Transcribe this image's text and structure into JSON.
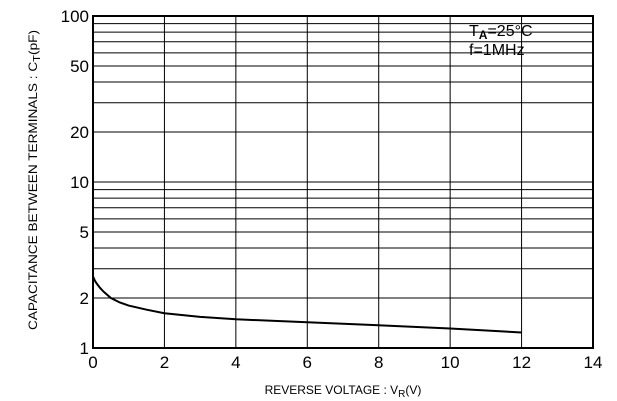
{
  "chart_data": {
    "type": "line",
    "xlabel": {
      "main": "REVERSE VOLTAGE : V",
      "sub": "R",
      "unit": "(V)"
    },
    "ylabel": {
      "main": "CAPACITANCE BETWEEN TERMINALS : C",
      "sub": "T",
      "unit": "(pF)"
    },
    "annotation": {
      "line1_main": "T",
      "line1_sub": "A",
      "line1_rest": "=25°C",
      "line2": "f=1MHz"
    },
    "xlim": [
      0,
      14
    ],
    "ylim": [
      1,
      100
    ],
    "yscale": "log",
    "grid": true,
    "x_ticks": [
      0,
      2,
      4,
      6,
      8,
      10,
      12,
      14
    ],
    "x_tick_labels": [
      "0",
      "2",
      "4",
      "6",
      "8",
      "10",
      "12",
      "14"
    ],
    "y_ticks": [
      1,
      2,
      5,
      10,
      20,
      50,
      100
    ],
    "y_tick_labels": [
      "1",
      "2",
      "5",
      "10",
      "20",
      "50",
      "100"
    ],
    "series": [
      {
        "x": [
          0,
          0.05,
          0.1,
          0.2,
          0.3,
          0.5,
          0.75,
          1,
          1.5,
          2,
          3,
          4,
          6,
          8,
          10,
          12
        ],
        "y": [
          2.7,
          2.55,
          2.45,
          2.3,
          2.18,
          2.0,
          1.88,
          1.8,
          1.7,
          1.62,
          1.54,
          1.49,
          1.43,
          1.37,
          1.31,
          1.24
        ]
      }
    ]
  }
}
